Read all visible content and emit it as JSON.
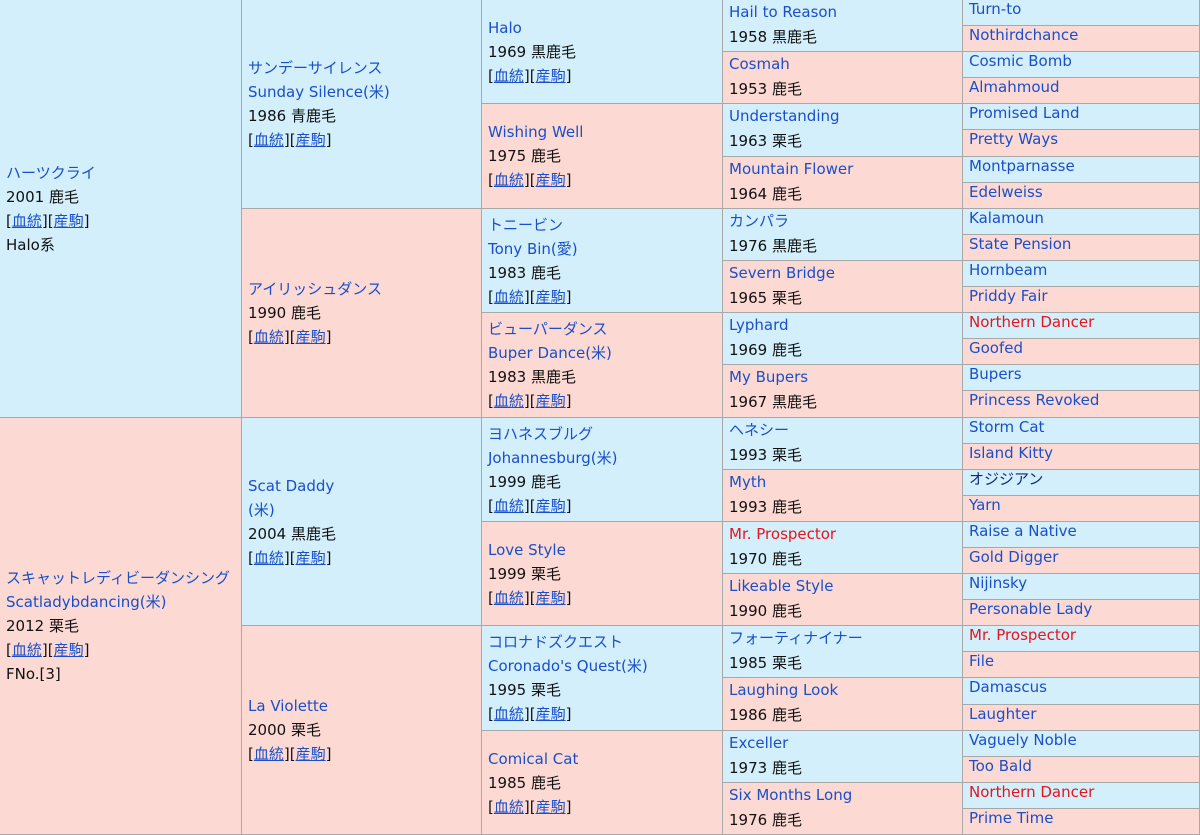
{
  "pedigree": {
    "generations": [
      [
        {
          "name": [
            "ハーツクライ"
          ],
          "info": "2001 鹿毛",
          "links": [
            "[",
            "血統",
            "][",
            "産駒",
            "]"
          ],
          "note": "Halo系"
        },
        {
          "name": [
            "スキャットレディビーダンシング",
            "Scatladybdancing(米)"
          ],
          "info": "2012 栗毛",
          "links": [
            "[",
            "血統",
            "][",
            "産駒",
            "]"
          ],
          "note": "FNo.[3]"
        }
      ],
      [
        {
          "name": [
            "サンデーサイレンス",
            "Sunday Silence(米)"
          ],
          "info": "1986 青鹿毛",
          "links": [
            "[",
            "血統",
            "][",
            "産駒",
            "]"
          ]
        },
        {
          "name": [
            "アイリッシュダンス"
          ],
          "info": "1990 鹿毛",
          "links": [
            "[",
            "血統",
            "][",
            "産駒",
            "]"
          ]
        },
        {
          "name": [
            "Scat Daddy",
            "(米)"
          ],
          "info": "2004 黒鹿毛",
          "links": [
            "[",
            "血統",
            "][",
            "産駒",
            "]"
          ]
        },
        {
          "name": [
            "La Violette"
          ],
          "info": "2000 栗毛",
          "links": [
            "[",
            "血統",
            "][",
            "産駒",
            "]"
          ]
        }
      ],
      [
        {
          "name": [
            "Halo"
          ],
          "info": "1969 黒鹿毛",
          "links": [
            "[",
            "血統",
            "][",
            "産駒",
            "]"
          ]
        },
        {
          "name": [
            "Wishing Well"
          ],
          "info": "1975 鹿毛",
          "links": [
            "[",
            "血統",
            "][",
            "産駒",
            "]"
          ]
        },
        {
          "name": [
            "トニービン",
            "Tony Bin(愛)"
          ],
          "info": "1983 鹿毛",
          "links": [
            "[",
            "血統",
            "][",
            "産駒",
            "]"
          ]
        },
        {
          "name": [
            "ビューパーダンス",
            "Buper Dance(米)"
          ],
          "info": "1983 黒鹿毛",
          "links": [
            "[",
            "血統",
            "][",
            "産駒",
            "]"
          ]
        },
        {
          "name": [
            "ヨハネスブルグ",
            "Johannesburg(米)"
          ],
          "info": "1999 鹿毛",
          "links": [
            "[",
            "血統",
            "][",
            "産駒",
            "]"
          ]
        },
        {
          "name": [
            "Love Style"
          ],
          "info": "1999 栗毛",
          "links": [
            "[",
            "血統",
            "][",
            "産駒",
            "]"
          ]
        },
        {
          "name": [
            "コロナドズクエスト",
            "Coronado's Quest(米)"
          ],
          "info": "1995 栗毛",
          "links": [
            "[",
            "血統",
            "][",
            "産駒",
            "]"
          ]
        },
        {
          "name": [
            "Comical Cat"
          ],
          "info": "1985 鹿毛",
          "links": [
            "[",
            "血統",
            "][",
            "産駒",
            "]"
          ]
        }
      ],
      [
        {
          "name": [
            "Hail to Reason"
          ],
          "info": "1958 黒鹿毛"
        },
        {
          "name": [
            "Cosmah"
          ],
          "info": "1953 鹿毛"
        },
        {
          "name": [
            "Understanding"
          ],
          "info": "1963 栗毛"
        },
        {
          "name": [
            "Mountain Flower"
          ],
          "info": "1964 鹿毛"
        },
        {
          "name": [
            "カンパラ"
          ],
          "info": "1976 黒鹿毛"
        },
        {
          "name": [
            "Severn Bridge"
          ],
          "info": "1965 栗毛"
        },
        {
          "name": [
            "Lyphard"
          ],
          "info": "1969 鹿毛"
        },
        {
          "name": [
            "My Bupers"
          ],
          "info": "1967 黒鹿毛"
        },
        {
          "name": [
            "ヘネシー"
          ],
          "info": "1993 栗毛"
        },
        {
          "name": [
            "Myth"
          ],
          "info": "1993 鹿毛"
        },
        {
          "name": [
            "Mr. Prospector"
          ],
          "info": "1970 鹿毛",
          "color": "#e8141c"
        },
        {
          "name": [
            "Likeable Style"
          ],
          "info": "1990 鹿毛"
        },
        {
          "name": [
            "フォーティナイナー"
          ],
          "info": "1985 栗毛"
        },
        {
          "name": [
            "Laughing Look"
          ],
          "info": "1986 鹿毛"
        },
        {
          "name": [
            "Exceller"
          ],
          "info": "1973 鹿毛"
        },
        {
          "name": [
            "Six Months Long"
          ],
          "info": "1976 鹿毛"
        }
      ],
      [
        {
          "name": [
            "Turn-to"
          ]
        },
        {
          "name": [
            "Nothirdchance"
          ]
        },
        {
          "name": [
            "Cosmic Bomb"
          ]
        },
        {
          "name": [
            "Almahmoud"
          ]
        },
        {
          "name": [
            "Promised Land"
          ]
        },
        {
          "name": [
            "Pretty Ways"
          ]
        },
        {
          "name": [
            "Montparnasse"
          ]
        },
        {
          "name": [
            "Edelweiss"
          ]
        },
        {
          "name": [
            "Kalamoun"
          ]
        },
        {
          "name": [
            "State Pension"
          ]
        },
        {
          "name": [
            "Hornbeam"
          ]
        },
        {
          "name": [
            "Priddy Fair"
          ]
        },
        {
          "name": [
            "Northern Dancer"
          ],
          "color": "#e8141c"
        },
        {
          "name": [
            "Goofed"
          ]
        },
        {
          "name": [
            "Bupers"
          ]
        },
        {
          "name": [
            "Princess Revoked"
          ]
        },
        {
          "name": [
            "Storm Cat"
          ]
        },
        {
          "name": [
            "Island Kitty"
          ]
        },
        {
          "name": [
            "オジジアン"
          ],
          "color": "#0b2a80"
        },
        {
          "name": [
            "Yarn"
          ]
        },
        {
          "name": [
            "Raise a Native"
          ]
        },
        {
          "name": [
            "Gold Digger"
          ]
        },
        {
          "name": [
            "Nijinsky"
          ]
        },
        {
          "name": [
            "Personable Lady"
          ]
        },
        {
          "name": [
            "Mr. Prospector"
          ],
          "color": "#e8141c"
        },
        {
          "name": [
            "File"
          ]
        },
        {
          "name": [
            "Damascus"
          ]
        },
        {
          "name": [
            "Laughter"
          ]
        },
        {
          "name": [
            "Vaguely Noble"
          ]
        },
        {
          "name": [
            "Too Bald"
          ]
        },
        {
          "name": [
            "Northern Dancer"
          ],
          "color": "#e8141c"
        },
        {
          "name": [
            "Prime Time"
          ]
        }
      ]
    ]
  }
}
